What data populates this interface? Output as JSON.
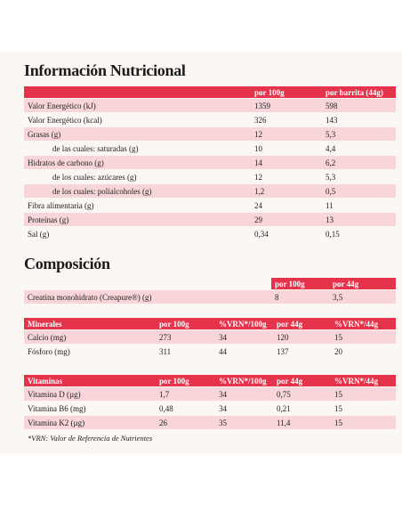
{
  "nutrition": {
    "title": "Información Nutricional",
    "columns": [
      "por 100g",
      "por barrita (44g)"
    ],
    "rows": [
      [
        "Valor Energético (kJ)",
        "1359",
        "598"
      ],
      [
        "Valor Energético (kcal)",
        "326",
        "143"
      ],
      [
        "Grasas (g)",
        "12",
        "5,3"
      ],
      [
        "de las cuales: saturadas (g)",
        "10",
        "4,4"
      ],
      [
        "Hidratos de carbono (g)",
        "14",
        "6,2"
      ],
      [
        "de los cuales: azúcares (g)",
        "12",
        "5,3"
      ],
      [
        "de los cuales: polialcoholes (g)",
        "1,2",
        "0,5"
      ],
      [
        "Fibra alimentaria (g)",
        "24",
        "11"
      ],
      [
        "Proteínas (g)",
        "29",
        "13"
      ],
      [
        "Sal (g)",
        "0,34",
        "0,15"
      ]
    ]
  },
  "composition": {
    "title": "Composición",
    "columns": [
      "por 100g",
      "por 44g"
    ],
    "rows": [
      [
        "Creatina monohidrato (Creapure®) (g)",
        "8",
        "3,5"
      ]
    ]
  },
  "minerals": {
    "columns": [
      "Minerales",
      "por 100g",
      "%VRN*/100g",
      "por 44g",
      "%VRN*/44g"
    ],
    "rows": [
      [
        "Calcio (mg)",
        "273",
        "34",
        "120",
        "15"
      ],
      [
        "Fósforo (mg)",
        "311",
        "44",
        "137",
        "20"
      ]
    ]
  },
  "vitamins": {
    "columns": [
      "Vitaminas",
      "por 100g",
      "%VRN*/100g",
      "por 44g",
      "%VRN*/44g"
    ],
    "rows": [
      [
        "Vitamina D (µg)",
        "1,7",
        "34",
        "0,75",
        "15"
      ],
      [
        "Vitamina B6 (mg)",
        "0,48",
        "34",
        "0,21",
        "15"
      ],
      [
        "Vitamina K2 (µg)",
        "26",
        "35",
        "11,4",
        "15"
      ]
    ]
  },
  "footnote": "*VRN: Valor de Referencia de Nutrientes"
}
